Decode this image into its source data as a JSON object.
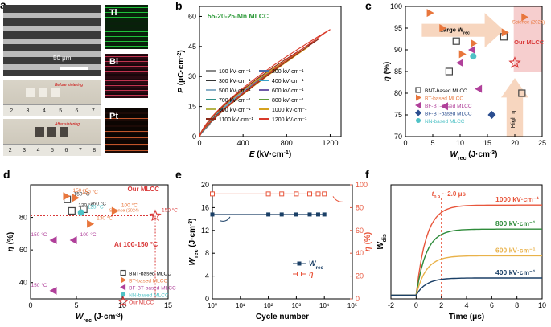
{
  "panel_labels": [
    "a",
    "b",
    "c",
    "d",
    "e",
    "f"
  ],
  "panel_a": {
    "scale_label": "50 μm",
    "before_label": "Before sintering",
    "after_label": "After sintering",
    "ruler_ticks_top": [
      "2",
      "3",
      "4",
      "5",
      "6",
      "7"
    ],
    "ruler_ticks_bottom": [
      "2",
      "3",
      "4",
      "5",
      "6",
      "7",
      "8"
    ],
    "eds_maps": [
      {
        "label": "Ti",
        "color": "#1fbf3a"
      },
      {
        "label": "Bi",
        "color": "#c0334f"
      },
      {
        "label": "Pt",
        "color": "#c0552a"
      }
    ]
  },
  "chart_data": [
    {
      "id": "b",
      "type": "line",
      "title": "55-20-25-Mn MLCC",
      "xlabel_main": "E",
      "xlabel_unit": " (kV·cm",
      "xlabel_sup": "-1",
      "xlabel_close": ")",
      "ylabel_main": "P",
      "ylabel_unit": " (μC·cm",
      "ylabel_sup": "-2",
      "ylabel_close": ")",
      "xlim": [
        0,
        1300
      ],
      "ylim": [
        0,
        65
      ],
      "xticks": [
        0,
        400,
        800,
        1200
      ],
      "yticks": [
        0,
        15,
        30,
        45,
        60
      ],
      "series": [
        {
          "name": "100 kV·cm⁻¹",
          "color": "#888888",
          "pmax": 6.2
        },
        {
          "name": "200 kV·cm⁻¹",
          "color": "#4b6ba8",
          "pmax": 12.0
        },
        {
          "name": "300 kV·cm⁻¹",
          "color": "#333333",
          "pmax": 17.2
        },
        {
          "name": "400 kV·cm⁻¹",
          "color": "#3aa0c8",
          "pmax": 22.1
        },
        {
          "name": "500 kV·cm⁻¹",
          "color": "#8ab0c8",
          "pmax": 26.6
        },
        {
          "name": "600 kV·cm⁻¹",
          "color": "#6f5aa8",
          "pmax": 30.7
        },
        {
          "name": "700 kV·cm⁻¹",
          "color": "#2f8f8a",
          "pmax": 34.6
        },
        {
          "name": "800 kV·cm⁻¹",
          "color": "#5e9a3a",
          "pmax": 38.2
        },
        {
          "name": "900 kV·cm⁻¹",
          "color": "#b5b54a",
          "pmax": 41.5
        },
        {
          "name": "1000 kV·cm⁻¹",
          "color": "#d6a21e",
          "pmax": 44.8
        },
        {
          "name": "1100 kV·cm⁻¹",
          "color": "#8b2a1a",
          "pmax": 48.9
        },
        {
          "name": "1200 kV·cm⁻¹",
          "color": "#d93a2a",
          "pmax": 53.5
        }
      ]
    },
    {
      "id": "c",
      "type": "scatter",
      "xlabel_main": "W",
      "xlabel_sub": "rec",
      "xlabel_unit": " (J·cm",
      "xlabel_sup": "-3",
      "xlabel_close": ")",
      "ylabel_main": "η",
      "ylabel_unit": " (%)",
      "xlim": [
        0,
        25
      ],
      "ylim": [
        70,
        100
      ],
      "xticks": [
        0,
        5,
        10,
        15,
        20,
        25
      ],
      "yticks": [
        70,
        75,
        80,
        85,
        90,
        95,
        100
      ],
      "annotations": {
        "large_w": "Large W",
        "large_w_sub": "rec",
        "high_eta": "High η",
        "science": "Science (2024)",
        "our": "Our MLCC"
      },
      "series": [
        {
          "name": "BNT-based MLCC",
          "marker": "square",
          "color": "#444444",
          "points": [
            [
              8.0,
              85.0
            ],
            [
              9.3,
              92.0
            ],
            [
              18.0,
              93.0
            ],
            [
              21.3,
              80.0
            ]
          ]
        },
        {
          "name": "BT-based MLCC",
          "marker": "tri-right",
          "color": "#e8763c",
          "points": [
            [
              4.5,
              98.5
            ],
            [
              6.8,
              95.0
            ],
            [
              10.4,
              89.0
            ],
            [
              12.5,
              91.5
            ],
            [
              18.2,
              94.0
            ],
            [
              21.8,
              97.5
            ]
          ]
        },
        {
          "name": "BF-BT-based MLCC",
          "marker": "tri-left",
          "color": "#b0409a",
          "points": [
            [
              7.2,
              77.0
            ],
            [
              10.0,
              87.0
            ],
            [
              12.2,
              90.0
            ],
            [
              13.4,
              81.0
            ]
          ]
        },
        {
          "name": "BF-BT-based MLCC",
          "marker": "diamond",
          "color": "#2a4d8f",
          "points": [
            [
              15.8,
              75.0
            ]
          ]
        },
        {
          "name": "NN-based MLCC",
          "marker": "circle",
          "color": "#4fc2c6",
          "points": [
            [
              12.4,
              88.5
            ]
          ]
        },
        {
          "name": "Our MLCC",
          "marker": "star",
          "color": "#d93a3a",
          "points": [
            [
              20.0,
              87.0
            ]
          ]
        }
      ]
    },
    {
      "id": "d",
      "type": "scatter",
      "xlabel_main": "W",
      "xlabel_sub": "rec",
      "xlabel_unit": " (J·cm",
      "xlabel_sup": "-3",
      "xlabel_close": ")",
      "ylabel_main": "η",
      "ylabel_unit": " (%)",
      "xlim": [
        0,
        15
      ],
      "ylim": [
        30,
        100
      ],
      "xticks": [
        0,
        5,
        10,
        15
      ],
      "yticks": [
        40,
        60,
        80
      ],
      "annotations": {
        "range": "At 100-150 °C",
        "our": "Our MLCC",
        "science": "Science (2024)"
      },
      "series": [
        {
          "name": "BNT-based MLCC",
          "marker": "square",
          "color": "#444444",
          "points": [
            [
              4.0,
              91.0,
              "150 °C"
            ],
            [
              5.8,
              85.0,
              "150 °C"
            ],
            [
              4.5,
              84.0,
              "120 °C"
            ]
          ]
        },
        {
          "name": "BT-based MLCC",
          "marker": "tri-right",
          "color": "#e8763c",
          "points": [
            [
              4.9,
              92.0,
              "150 °C"
            ],
            [
              3.9,
              93.0,
              "150 °C"
            ],
            [
              9.2,
              84.0,
              "100 °C"
            ],
            [
              6.5,
              76.0,
              "130 °C"
            ]
          ]
        },
        {
          "name": "BF-BT-based MLCC",
          "marker": "tri-left",
          "color": "#b0409a",
          "points": [
            [
              2.5,
              66.0,
              "150 °C"
            ],
            [
              4.7,
              66.0,
              "100 °C"
            ],
            [
              2.5,
              35.0,
              "150 °C"
            ]
          ]
        },
        {
          "name": "NN-based MLCC",
          "marker": "circle",
          "color": "#4fc2c6",
          "points": [
            [
              5.5,
              83.0,
              "125 °C"
            ]
          ]
        },
        {
          "name": "Our MLCC",
          "marker": "star",
          "color": "#d93a3a",
          "points": [
            [
              13.6,
              81.0,
              "150 °C"
            ]
          ]
        }
      ]
    },
    {
      "id": "e",
      "type": "line",
      "xlabel": "Cycle number",
      "ylabel_main": "W",
      "ylabel_sub": "rec",
      "ylabel_unit": " (J·cm",
      "ylabel_sup": "-3",
      "ylabel_close": ")",
      "y2label_main": "η",
      "y2label_unit": " (%)",
      "xlim_log": [
        0,
        5
      ],
      "ylim": [
        0,
        20
      ],
      "y2lim": [
        0,
        100
      ],
      "xtick_labels": [
        "10⁰",
        "10¹",
        "10²",
        "10³",
        "10⁴",
        "10⁵"
      ],
      "yticks": [
        0,
        4,
        8,
        12,
        16,
        20
      ],
      "y2ticks": [
        0,
        20,
        40,
        60,
        80,
        100
      ],
      "cycles": [
        1,
        100,
        300,
        1000,
        3000,
        6000,
        10000
      ],
      "wrec": [
        14.8,
        14.8,
        14.8,
        14.8,
        14.8,
        14.8,
        14.8
      ],
      "eta": [
        92.0,
        92.0,
        92.0,
        92.0,
        92.0,
        92.0,
        92.0
      ],
      "legend": [
        {
          "name": "W",
          "sub": "rec",
          "color": "#1a3f66"
        },
        {
          "name": "η",
          "sub": "",
          "color": "#e8563c"
        }
      ]
    },
    {
      "id": "f",
      "type": "line",
      "xlabel": "Time (μs)",
      "ylabel_main": "W",
      "ylabel_sub": "dis",
      "xlim": [
        -2,
        10
      ],
      "xticks": [
        -2,
        0,
        2,
        4,
        6,
        8,
        10
      ],
      "ylim": [
        0,
        18
      ],
      "t09_label": "t",
      "t09_sub": "0.9",
      "t09_value": " ~ 2.0 μs",
      "t09_x": 2.0,
      "series": [
        {
          "name": "1000 kV·cm⁻¹",
          "color": "#e8563c",
          "wmax": 14.8
        },
        {
          "name": "800 kV·cm⁻¹",
          "color": "#2e8b3a",
          "wmax": 11.0
        },
        {
          "name": "600 kV·cm⁻¹",
          "color": "#e9b24a",
          "wmax": 6.8
        },
        {
          "name": "400 kV·cm⁻¹",
          "color": "#1a3f66",
          "wmax": 3.3
        }
      ]
    }
  ]
}
